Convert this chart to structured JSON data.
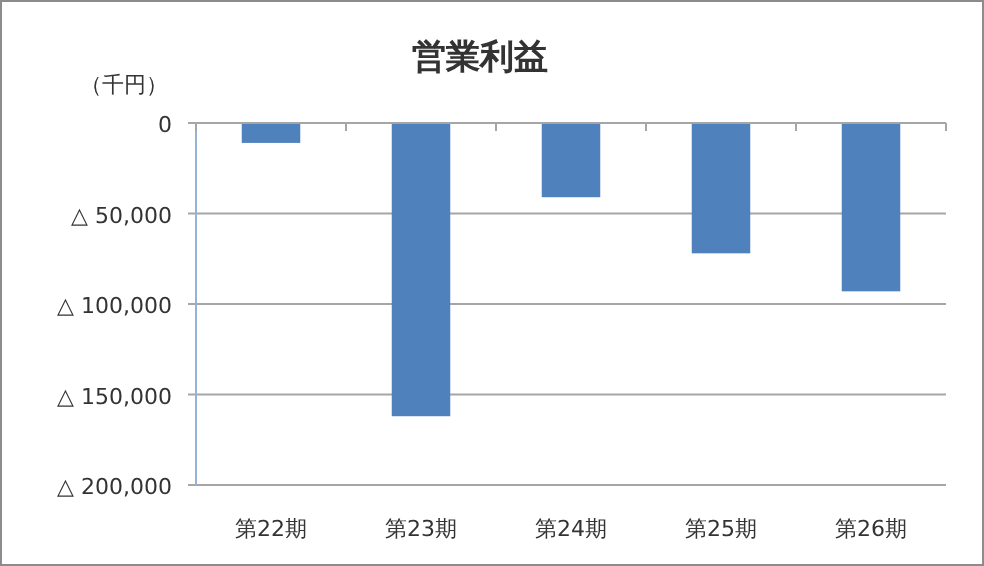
{
  "chart_data": {
    "type": "bar",
    "title": "営業利益",
    "ylabel": "（千円）",
    "categories": [
      "第22期",
      "第23期",
      "第24期",
      "第25期",
      "第26期"
    ],
    "values": [
      -11000,
      -162000,
      -41000,
      -72000,
      -93000
    ],
    "color": "#4f81bd",
    "ylim": [
      -200000,
      0
    ],
    "yticks": [
      0,
      {
        "value": -50000,
        "label": "△ 50,000"
      },
      {
        "value": -100000,
        "label": "△ 100,000"
      },
      {
        "value": -150000,
        "label": "△ 150,000"
      },
      {
        "value": -200000,
        "label": "△ 200,000"
      }
    ],
    "grid": "y"
  }
}
